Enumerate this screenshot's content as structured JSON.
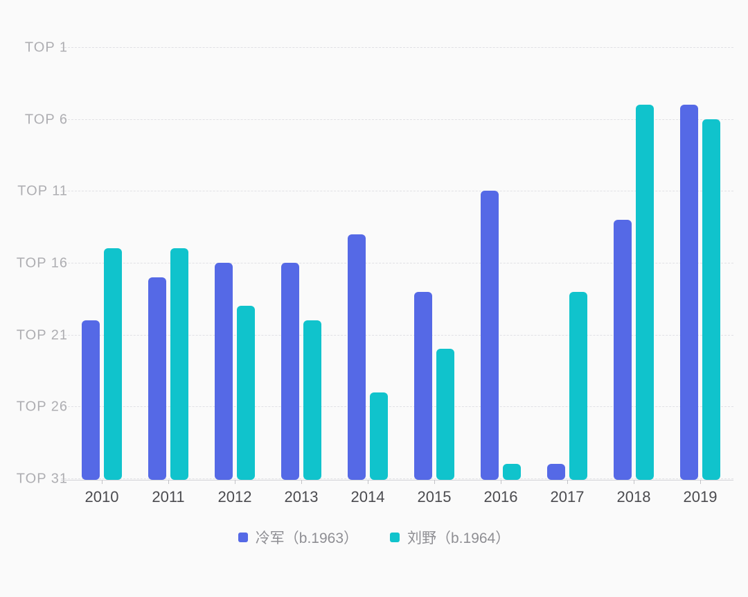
{
  "chart_data": {
    "type": "bar",
    "title": "",
    "categories": [
      "2010",
      "2011",
      "2012",
      "2013",
      "2014",
      "2015",
      "2016",
      "2017",
      "2018",
      "2019"
    ],
    "series": [
      {
        "name": "冷军（b.1963）",
        "color": "#5569e6",
        "values": [
          20,
          17,
          16,
          16,
          14,
          18,
          11,
          30,
          13,
          5
        ]
      },
      {
        "name": "刘野（b.1964）",
        "color": "#10c3cc",
        "values": [
          15,
          15,
          19,
          20,
          25,
          22,
          30,
          18,
          5,
          6
        ]
      }
    ],
    "xlabel": "",
    "ylabel": "",
    "y_axis": {
      "inverted": true,
      "range": [
        1,
        31
      ],
      "ticks": [
        1,
        6,
        11,
        16,
        21,
        26,
        31
      ],
      "tick_labels": [
        "TOP 1",
        "TOP 6",
        "TOP 11",
        "TOP 16",
        "TOP 21",
        "TOP 26",
        "TOP 31"
      ]
    },
    "grid": "horizontal-dashed",
    "legend_position": "bottom-center"
  },
  "style": {
    "background": "#fafafa",
    "grid_color": "#e0e0e4",
    "axis_line_color": "#d2d2d6",
    "y_label_color": "#aeaeb2",
    "x_label_color": "#4b4b4f",
    "legend_text_color": "#8e8e93"
  }
}
